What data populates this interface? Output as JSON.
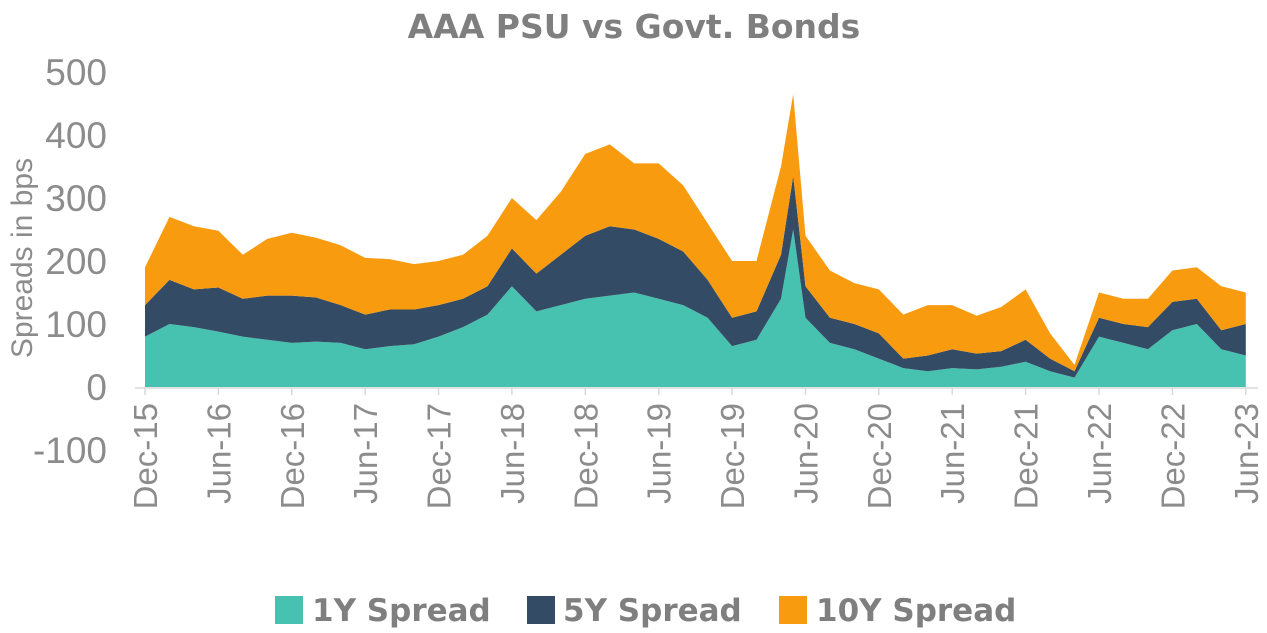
{
  "chart_data": {
    "type": "area",
    "title": "AAA PSU vs Govt. Bonds",
    "ylabel": "Spreads in bps",
    "xlabel": "",
    "ylim": [
      -100,
      500
    ],
    "yticks": [
      "-100",
      "0",
      "100",
      "200",
      "300",
      "400",
      "500"
    ],
    "x_tick_labels": [
      "Dec-15",
      "Jun-16",
      "Dec-16",
      "Jun-17",
      "Dec-17",
      "Jun-18",
      "Dec-18",
      "Jun-19",
      "Dec-19",
      "Jun-20",
      "Dec-20",
      "Jun-21",
      "Dec-21",
      "Jun-22",
      "Dec-22",
      "Jun-23"
    ],
    "x_range": [
      "2015-12",
      "2023-07"
    ],
    "grid": false,
    "legend_position": "bottom",
    "stacked": true,
    "colors": {
      "1Y Spread": "#47c1b0",
      "5Y Spread": "#344b65",
      "10Y Spread": "#f99b0f"
    },
    "x": [
      "2015-12",
      "2016-02",
      "2016-04",
      "2016-06",
      "2016-08",
      "2016-10",
      "2016-12",
      "2017-02",
      "2017-04",
      "2017-06",
      "2017-08",
      "2017-10",
      "2017-12",
      "2018-02",
      "2018-04",
      "2018-06",
      "2018-08",
      "2018-10",
      "2018-12",
      "2019-02",
      "2019-04",
      "2019-06",
      "2019-08",
      "2019-10",
      "2019-12",
      "2020-02",
      "2020-04",
      "2020-05",
      "2020-06",
      "2020-08",
      "2020-10",
      "2020-12",
      "2021-02",
      "2021-04",
      "2021-06",
      "2021-08",
      "2021-10",
      "2021-12",
      "2022-02",
      "2022-04",
      "2022-06",
      "2022-08",
      "2022-10",
      "2022-12",
      "2023-02",
      "2023-04",
      "2023-06"
    ],
    "series": [
      {
        "name": "1Y Spread",
        "values": [
          80,
          100,
          95,
          88,
          80,
          75,
          70,
          72,
          70,
          60,
          65,
          68,
          80,
          95,
          115,
          160,
          120,
          130,
          140,
          145,
          150,
          140,
          130,
          110,
          65,
          75,
          140,
          250,
          110,
          70,
          60,
          45,
          30,
          25,
          30,
          28,
          32,
          40,
          25,
          15,
          80,
          70,
          60,
          90,
          100,
          60,
          50
        ]
      },
      {
        "name": "5Y Spread",
        "values": [
          50,
          70,
          60,
          70,
          60,
          70,
          75,
          70,
          60,
          55,
          58,
          55,
          50,
          45,
          45,
          60,
          60,
          80,
          100,
          110,
          100,
          95,
          85,
          60,
          45,
          45,
          70,
          85,
          50,
          40,
          40,
          40,
          15,
          25,
          30,
          25,
          25,
          35,
          20,
          10,
          30,
          30,
          35,
          45,
          40,
          30,
          50
        ]
      },
      {
        "name": "10Y Spread",
        "values": [
          60,
          100,
          100,
          90,
          70,
          90,
          100,
          95,
          95,
          90,
          80,
          72,
          70,
          70,
          80,
          80,
          85,
          100,
          130,
          130,
          105,
          120,
          105,
          90,
          90,
          80,
          140,
          130,
          80,
          75,
          65,
          70,
          70,
          80,
          70,
          60,
          70,
          80,
          40,
          10,
          40,
          40,
          45,
          50,
          50,
          70,
          50
        ]
      }
    ]
  }
}
